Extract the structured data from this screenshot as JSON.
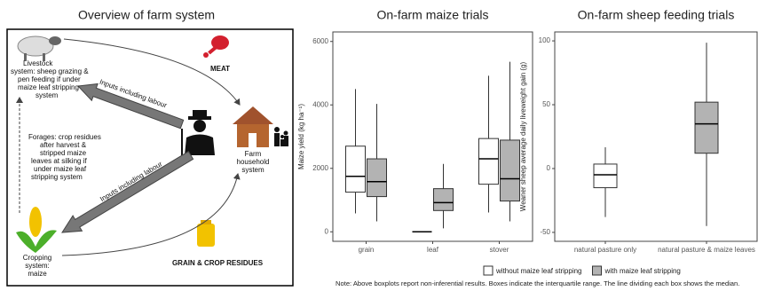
{
  "diagram": {
    "title": "Overview of farm system",
    "livestock": [
      "Livestock",
      "system: sheep grazing &",
      "pen feeding if under",
      "maize leaf stripping",
      "system"
    ],
    "meat": "MEAT",
    "inputs_upper": "Inputs including labour",
    "forages": [
      "Forages: crop residues",
      "after harvest &",
      "stripped maize",
      "leaves at silking if",
      "under maize leaf",
      "stripping system"
    ],
    "household": [
      "Farm",
      "household",
      "system"
    ],
    "inputs_lower": "Inputs including labour",
    "cropping": [
      "Cropping",
      "system:",
      "maize"
    ],
    "grain": "GRAIN & CROP RESIDUES"
  },
  "chart_data": [
    {
      "type": "box",
      "title": "On-farm maize trials",
      "y_label": "Maize yield (kg ha⁻¹)",
      "categories": [
        "grain",
        "leaf",
        "stover"
      ],
      "ylim": [
        -300,
        6300
      ],
      "yticks": [
        0,
        2000,
        4000,
        6000
      ],
      "legend": "bottom",
      "series": [
        {
          "name": "without maize leaf stripping",
          "color": "#ffffff",
          "boxes": [
            {
              "min": 580,
              "q1": 1250,
              "median": 1750,
              "q3": 2700,
              "max": 4500
            },
            {
              "min": 0,
              "q1": 0,
              "median": 0,
              "q3": 0,
              "max": 0
            },
            {
              "min": 610,
              "q1": 1500,
              "median": 2300,
              "q3": 2940,
              "max": 4920
            }
          ]
        },
        {
          "name": "with maize leaf stripping",
          "color": "#b3b3b3",
          "boxes": [
            {
              "min": 330,
              "q1": 1110,
              "median": 1580,
              "q3": 2300,
              "max": 4030
            },
            {
              "min": 110,
              "q1": 670,
              "median": 920,
              "q3": 1360,
              "max": 2140
            },
            {
              "min": 330,
              "q1": 970,
              "median": 1670,
              "q3": 2890,
              "max": 5360
            }
          ]
        }
      ]
    },
    {
      "type": "box",
      "title": "On-farm sheep feeding trials",
      "y_label": "Weaner sheep average daily liveweight gain (g)",
      "categories": [
        "natural pasture only",
        "natural pasture & maize leaves"
      ],
      "ylim": [
        -57,
        107
      ],
      "yticks": [
        -50,
        0,
        50,
        100
      ],
      "boxes": [
        {
          "min": -38,
          "q1": -15,
          "median": -4.9,
          "q3": 3.5,
          "max": 16.7,
          "color": "#ffffff"
        },
        {
          "min": -45,
          "q1": 12,
          "median": 35,
          "q3": 52,
          "max": 98.6,
          "color": "#b3b3b3"
        }
      ]
    }
  ],
  "note": "Note: Above boxplots report non-inferential results. Boxes indicate the interquartile range. The line dividing each box shows the median."
}
